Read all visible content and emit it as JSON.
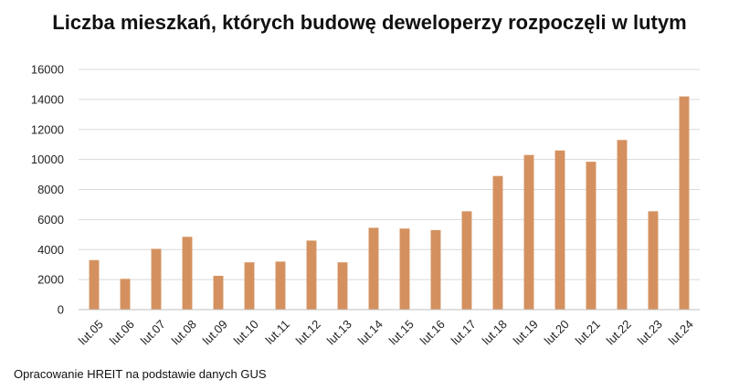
{
  "title": "Liczba mieszkań, których budowę deweloperzy rozpoczęli w lutym",
  "source": "Opracowanie HREIT na podstawie danych GUS",
  "colors": {
    "bar": "#D4915F",
    "grid": "#D9D9D9",
    "axis": "#BFBFBF"
  },
  "chart_data": {
    "type": "bar",
    "title": "Liczba mieszkań, których budowę deweloperzy rozpoczęli w lutym",
    "categories": [
      "lut.05",
      "lut.06",
      "lut.07",
      "lut.08",
      "lut.09",
      "lut.10",
      "lut.11",
      "lut.12",
      "lut.13",
      "lut.14",
      "lut.15",
      "lut.16",
      "lut.17",
      "lut.18",
      "lut.19",
      "lut.20",
      "lut.21",
      "lut.22",
      "lut.23",
      "lut.24"
    ],
    "values": [
      3300,
      2050,
      4050,
      4850,
      2250,
      3150,
      3200,
      4600,
      3150,
      5450,
      5400,
      5300,
      6550,
      8900,
      10300,
      10600,
      9850,
      11300,
      6550,
      14200
    ],
    "yticks": [
      0,
      2000,
      4000,
      6000,
      8000,
      10000,
      12000,
      14000,
      16000
    ],
    "ylim": [
      0,
      16000
    ],
    "xlabel": "",
    "ylabel": "",
    "grid": true,
    "legend": "none"
  }
}
